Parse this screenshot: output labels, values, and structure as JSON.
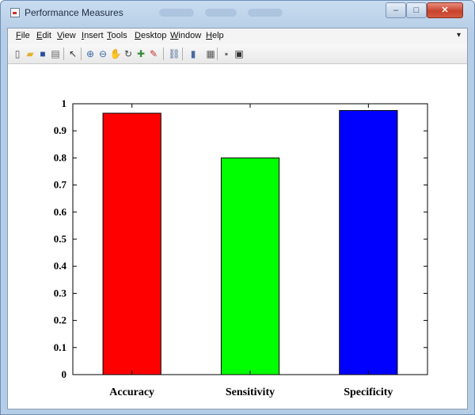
{
  "window": {
    "title": "Performance Measures",
    "minimize_glyph": "–",
    "maximize_glyph": "□",
    "close_glyph": "✕"
  },
  "menu": [
    {
      "label": "File",
      "key": "F",
      "rest": "ile"
    },
    {
      "label": "Edit",
      "key": "E",
      "rest": "dit"
    },
    {
      "label": "View",
      "key": "V",
      "rest": "iew"
    },
    {
      "label": "Insert",
      "key": "I",
      "rest": "nsert"
    },
    {
      "label": "Tools",
      "key": "T",
      "rest": "ools"
    },
    {
      "label": "Desktop",
      "key": "D",
      "rest": "esktop"
    },
    {
      "label": "Window",
      "key": "W",
      "rest": "indow"
    },
    {
      "label": "Help",
      "key": "H",
      "rest": "elp"
    }
  ],
  "toolbar": {
    "icons": [
      "new-figure-icon",
      "open-file-icon",
      "save-icon",
      "print-icon",
      "edit-plot-icon",
      "zoom-in-icon",
      "zoom-out-icon",
      "pan-icon",
      "rotate-3d-icon",
      "data-cursor-icon",
      "brush-icon",
      "link-icon",
      "colorbar-icon",
      "legend-icon",
      "hide-plot-tools-icon",
      "show-plot-tools-icon"
    ]
  },
  "chart_data": {
    "type": "bar",
    "categories": [
      "Accuracy",
      "Sensitivity",
      "Specificity"
    ],
    "values": [
      0.965,
      0.8,
      0.975
    ],
    "colors": [
      "#ff0000",
      "#00ff00",
      "#0000ff"
    ],
    "title": "",
    "xlabel": "",
    "ylabel": "",
    "ylim": [
      0,
      1
    ],
    "yticks": [
      "0",
      "0.1",
      "0.2",
      "0.3",
      "0.4",
      "0.5",
      "0.6",
      "0.7",
      "0.8",
      "0.9",
      "1"
    ],
    "grid": false,
    "legend": "none"
  }
}
